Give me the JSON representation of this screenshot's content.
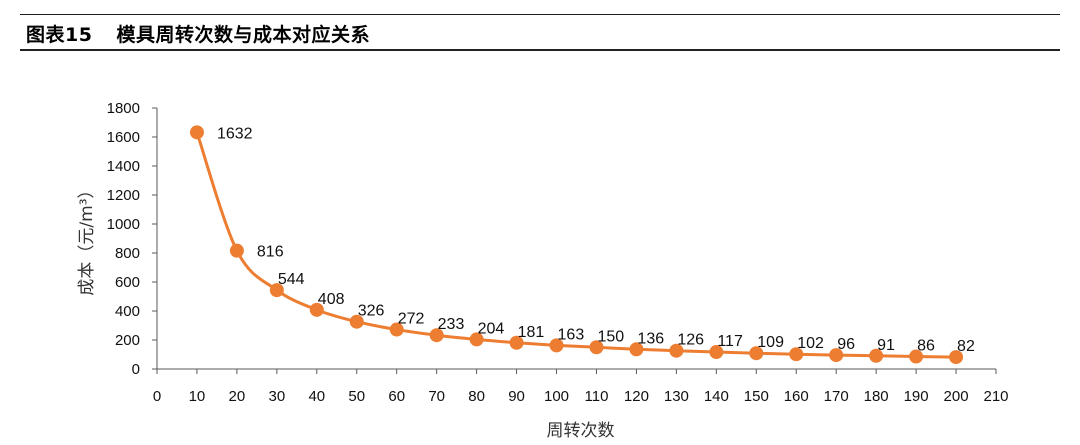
{
  "figure": {
    "number": "图表15",
    "title": "模具周转次数与成本对应关系"
  },
  "chart_data": {
    "type": "line",
    "xlabel": "周转次数",
    "ylabel": "成本（元/m³）",
    "xlim": [
      0,
      210
    ],
    "ylim": [
      0,
      1800
    ],
    "xticks": [
      0,
      10,
      20,
      30,
      40,
      50,
      60,
      70,
      80,
      90,
      100,
      110,
      120,
      130,
      140,
      150,
      160,
      170,
      180,
      190,
      200,
      210
    ],
    "yticks": [
      0,
      200,
      400,
      600,
      800,
      1000,
      1200,
      1400,
      1600,
      1800
    ],
    "grid": false,
    "smooth": true,
    "marker": "circle",
    "color": "#ED7D31",
    "series": [
      {
        "x": [
          10,
          20,
          30,
          40,
          50,
          60,
          70,
          80,
          90,
          100,
          110,
          120,
          130,
          140,
          150,
          160,
          170,
          180,
          190,
          200
        ],
        "values": [
          1632,
          816,
          544,
          408,
          326,
          272,
          233,
          204,
          181,
          163,
          150,
          136,
          126,
          117,
          109,
          102,
          96,
          91,
          86,
          82
        ],
        "labels": [
          "1632",
          "816",
          "544",
          "408",
          "326",
          "272",
          "233",
          "204",
          "181",
          "163",
          "150",
          "136",
          "126",
          "117",
          "109",
          "102",
          "96",
          "91",
          "86",
          "82"
        ]
      }
    ]
  }
}
